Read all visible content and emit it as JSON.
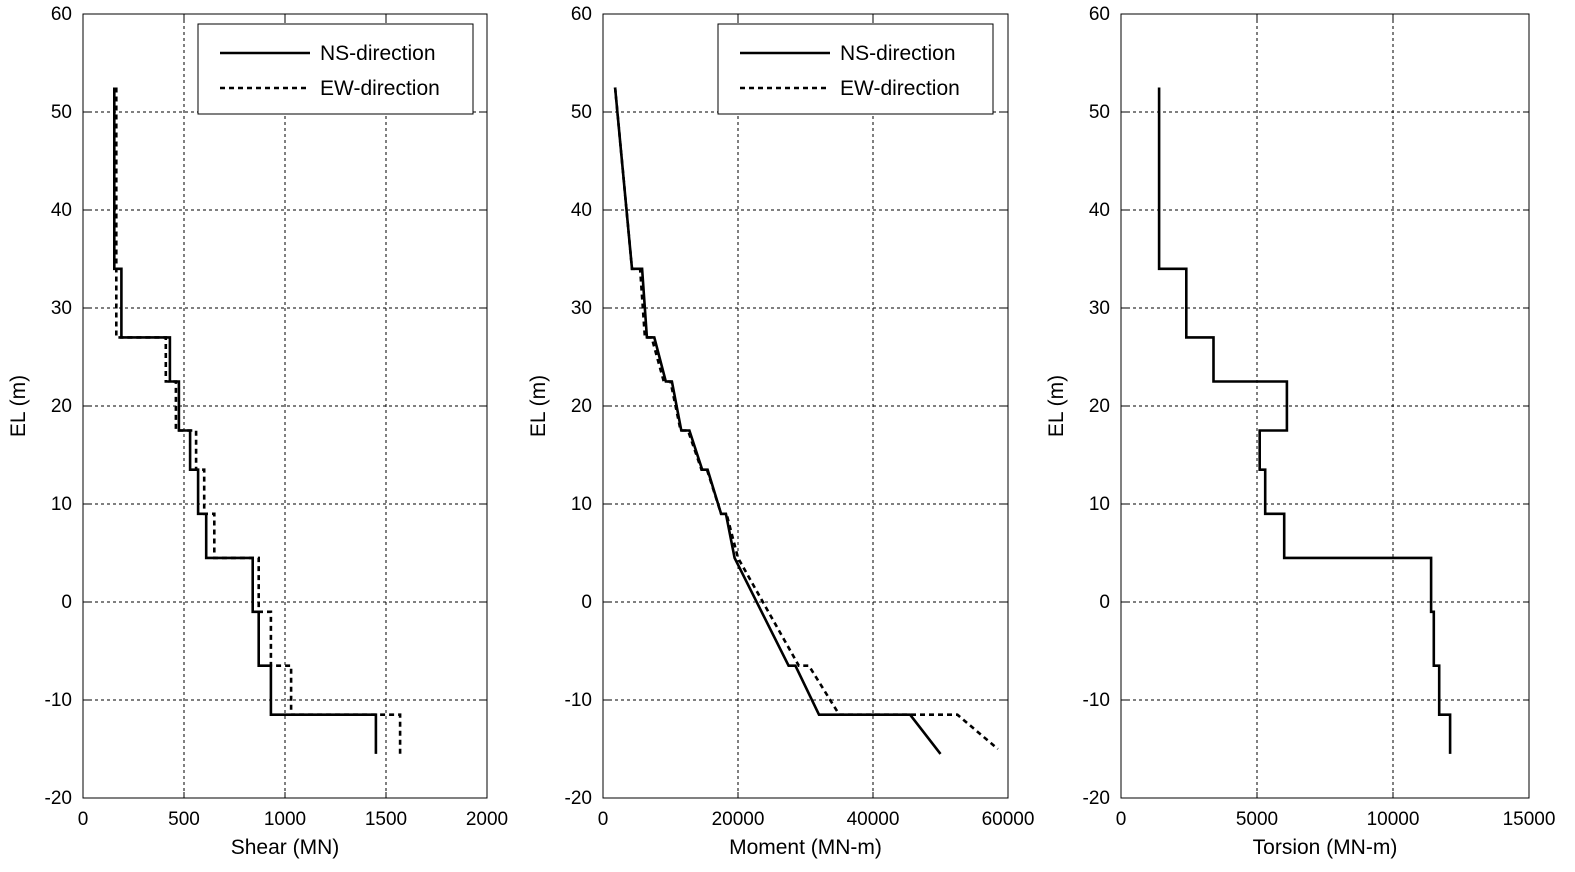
{
  "chart_data": [
    {
      "type": "line",
      "xlabel": "Shear (MN)",
      "ylabel": "EL (m)",
      "xlim": [
        0,
        2000
      ],
      "ylim": [
        -20,
        60
      ],
      "xticks": [
        0,
        500,
        1000,
        1500,
        2000
      ],
      "yticks": [
        -20,
        -10,
        0,
        10,
        20,
        30,
        40,
        50,
        60
      ],
      "grid": true,
      "legend": "top-right",
      "series": [
        {
          "name": "NS-direction",
          "style": "solid",
          "points": [
            [
              155,
              52.5
            ],
            [
              155,
              34
            ],
            [
              190,
              34
            ],
            [
              190,
              27
            ],
            [
              430,
              27
            ],
            [
              430,
              22.5
            ],
            [
              475,
              22.5
            ],
            [
              475,
              17.5
            ],
            [
              530,
              17.5
            ],
            [
              530,
              13.5
            ],
            [
              570,
              13.5
            ],
            [
              570,
              9
            ],
            [
              610,
              9
            ],
            [
              610,
              4.5
            ],
            [
              840,
              4.5
            ],
            [
              840,
              -1
            ],
            [
              870,
              -1
            ],
            [
              870,
              -6.5
            ],
            [
              930,
              -6.5
            ],
            [
              930,
              -11.5
            ],
            [
              1450,
              -11.5
            ],
            [
              1450,
              -15.5
            ]
          ]
        },
        {
          "name": "EW-direction",
          "style": "dashed",
          "points": [
            [
              165,
              52.5
            ],
            [
              165,
              27
            ],
            [
              410,
              27
            ],
            [
              410,
              22.5
            ],
            [
              460,
              22.5
            ],
            [
              460,
              17.5
            ],
            [
              560,
              17.5
            ],
            [
              560,
              13.5
            ],
            [
              600,
              13.5
            ],
            [
              600,
              9
            ],
            [
              650,
              9
            ],
            [
              650,
              4.5
            ],
            [
              870,
              4.5
            ],
            [
              870,
              -1
            ],
            [
              930,
              -1
            ],
            [
              930,
              -6.5
            ],
            [
              1030,
              -6.5
            ],
            [
              1030,
              -11.5
            ],
            [
              1570,
              -11.5
            ],
            [
              1570,
              -15.5
            ]
          ]
        }
      ]
    },
    {
      "type": "line",
      "xlabel": "Moment (MN-m)",
      "ylabel": "EL (m)",
      "xlim": [
        0,
        60000
      ],
      "ylim": [
        -20,
        60
      ],
      "xticks": [
        0,
        20000,
        40000,
        60000
      ],
      "yticks": [
        -20,
        -10,
        0,
        10,
        20,
        30,
        40,
        50,
        60
      ],
      "grid": true,
      "legend": "top-right",
      "series": [
        {
          "name": "NS-direction",
          "style": "solid",
          "points": [
            [
              1800,
              52.5
            ],
            [
              4300,
              34
            ],
            [
              5800,
              34
            ],
            [
              6500,
              27
            ],
            [
              7600,
              27
            ],
            [
              9300,
              22.5
            ],
            [
              10200,
              22.5
            ],
            [
              11600,
              17.5
            ],
            [
              12800,
              17.5
            ],
            [
              14700,
              13.5
            ],
            [
              15500,
              13.5
            ],
            [
              17500,
              9
            ],
            [
              18200,
              9
            ],
            [
              19500,
              4.5
            ],
            [
              23500,
              -1
            ],
            [
              27500,
              -6.5
            ],
            [
              28500,
              -6.5
            ],
            [
              32000,
              -11.5
            ],
            [
              45500,
              -11.5
            ],
            [
              50000,
              -15.5
            ]
          ]
        },
        {
          "name": "EW-direction",
          "style": "dashed",
          "points": [
            [
              1800,
              52.5
            ],
            [
              4300,
              34
            ],
            [
              5500,
              34
            ],
            [
              6200,
              27
            ],
            [
              7200,
              27
            ],
            [
              9000,
              22.5
            ],
            [
              10000,
              22.5
            ],
            [
              11500,
              17.5
            ],
            [
              12600,
              17.5
            ],
            [
              14600,
              13.5
            ],
            [
              15400,
              13.5
            ],
            [
              17500,
              9
            ],
            [
              18300,
              9
            ],
            [
              20000,
              4.5
            ],
            [
              24500,
              -1
            ],
            [
              29000,
              -6.5
            ],
            [
              30500,
              -6.5
            ],
            [
              35000,
              -11.5
            ],
            [
              52500,
              -11.5
            ],
            [
              58500,
              -15
            ]
          ]
        }
      ]
    },
    {
      "type": "line",
      "xlabel": "Torsion (MN-m)",
      "ylabel": "EL (m)",
      "xlim": [
        0,
        15000
      ],
      "ylim": [
        -20,
        60
      ],
      "xticks": [
        0,
        5000,
        10000,
        15000
      ],
      "yticks": [
        -20,
        -10,
        0,
        10,
        20,
        30,
        40,
        50,
        60
      ],
      "grid": true,
      "legend": "none",
      "series": [
        {
          "style": "solid",
          "points": [
            [
              1400,
              52.5
            ],
            [
              1400,
              34
            ],
            [
              2400,
              34
            ],
            [
              2400,
              27
            ],
            [
              3400,
              27
            ],
            [
              3400,
              22.5
            ],
            [
              6100,
              22.5
            ],
            [
              6100,
              17.5
            ],
            [
              5100,
              17.5
            ],
            [
              5100,
              13.5
            ],
            [
              5300,
              13.5
            ],
            [
              5300,
              9
            ],
            [
              6000,
              9
            ],
            [
              6000,
              4.5
            ],
            [
              11400,
              4.5
            ],
            [
              11400,
              -1
            ],
            [
              11500,
              -1
            ],
            [
              11500,
              -6.5
            ],
            [
              11700,
              -6.5
            ],
            [
              11700,
              -11.5
            ],
            [
              12100,
              -11.5
            ],
            [
              12100,
              -15.5
            ]
          ]
        }
      ]
    }
  ]
}
